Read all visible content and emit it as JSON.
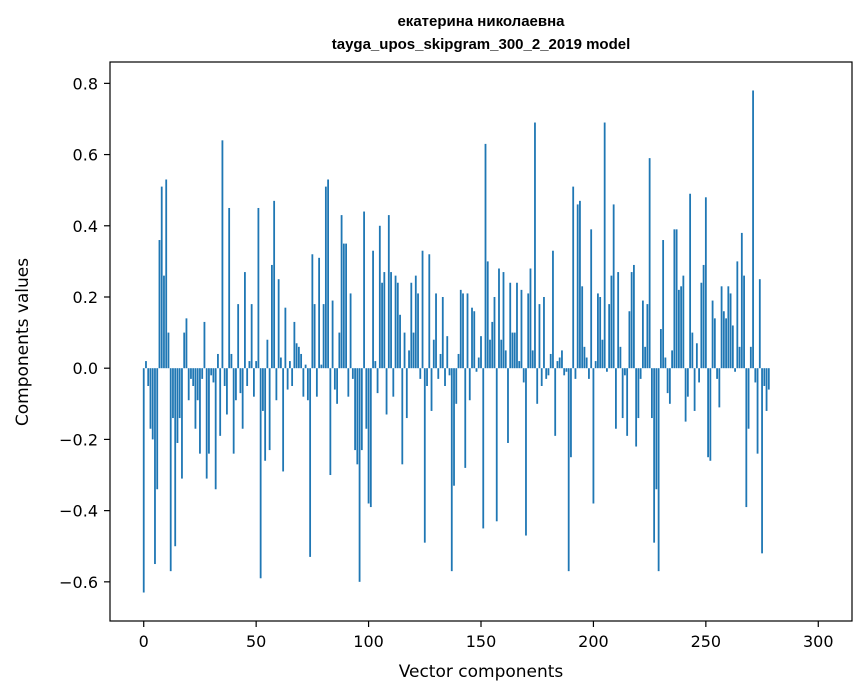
{
  "chart_data": {
    "type": "bar",
    "title_line1": "екатерина николаевна",
    "title_line2": "tayga_upos_skipgram_300_2_2019 model",
    "xlabel": "Vector components",
    "ylabel": "Components values",
    "xlim": [
      -15,
      315
    ],
    "ylim": [
      -0.71,
      0.86
    ],
    "xticks": [
      0,
      50,
      100,
      150,
      200,
      250,
      300
    ],
    "yticks": [
      -0.6,
      -0.4,
      -0.2,
      0.0,
      0.2,
      0.4,
      0.6,
      0.8
    ],
    "xtick_labels": [
      "0",
      "50",
      "100",
      "150",
      "200",
      "250",
      "300"
    ],
    "ytick_labels": [
      "−0.6",
      "−0.4",
      "−0.2",
      "0.0",
      "0.2",
      "0.4",
      "0.6",
      "0.8"
    ],
    "bar_color": "#1f77b4",
    "grid": false,
    "values": [
      -0.63,
      0.02,
      -0.05,
      -0.17,
      -0.2,
      -0.55,
      -0.34,
      0.36,
      0.51,
      0.26,
      0.53,
      0.1,
      -0.57,
      -0.14,
      -0.5,
      -0.21,
      -0.14,
      -0.31,
      0.1,
      0.14,
      -0.09,
      -0.03,
      -0.05,
      -0.17,
      -0.09,
      -0.24,
      -0.03,
      0.13,
      -0.31,
      -0.24,
      -0.02,
      -0.04,
      -0.34,
      0.04,
      -0.19,
      0.64,
      -0.05,
      -0.13,
      0.45,
      0.04,
      -0.24,
      -0.09,
      0.18,
      -0.07,
      -0.17,
      0.27,
      -0.05,
      0.02,
      0.18,
      -0.08,
      0.02,
      0.45,
      -0.59,
      -0.12,
      -0.26,
      0.08,
      -0.23,
      0.29,
      0.47,
      -0.09,
      0.25,
      0.03,
      -0.29,
      0.17,
      -0.06,
      0.02,
      -0.05,
      0.13,
      0.07,
      0.06,
      0.04,
      -0.08,
      0.01,
      -0.09,
      -0.53,
      0.32,
      0.18,
      -0.08,
      0.31,
      0.01,
      0.18,
      0.51,
      0.53,
      -0.3,
      0.19,
      -0.06,
      -0.1,
      0.1,
      0.43,
      0.35,
      0.35,
      -0.08,
      0.21,
      -0.03,
      -0.23,
      -0.27,
      -0.6,
      -0.23,
      0.44,
      -0.17,
      -0.38,
      -0.39,
      0.33,
      0.02,
      -0.07,
      0.4,
      0.24,
      0.27,
      -0.13,
      0.43,
      0.27,
      -0.08,
      0.26,
      0.24,
      0.15,
      -0.27,
      0.1,
      -0.14,
      0.05,
      0.24,
      0.1,
      0.26,
      0.21,
      -0.03,
      0.33,
      -0.49,
      -0.05,
      0.32,
      -0.12,
      0.08,
      0.21,
      -0.03,
      0.04,
      0.2,
      -0.05,
      0.09,
      -0.02,
      -0.57,
      -0.33,
      -0.1,
      0.04,
      0.22,
      0.21,
      -0.28,
      0.21,
      -0.09,
      0.17,
      0.16,
      -0.01,
      0.03,
      0.09,
      -0.45,
      0.63,
      0.3,
      0.08,
      0.13,
      0.2,
      -0.43,
      0.28,
      0.08,
      0.27,
      0.05,
      -0.21,
      0.24,
      0.1,
      0.1,
      0.24,
      0.02,
      0.22,
      -0.04,
      -0.47,
      0.21,
      0.28,
      0.05,
      0.69,
      -0.1,
      0.18,
      -0.05,
      0.2,
      -0.03,
      -0.02,
      0.04,
      0.33,
      -0.19,
      0.02,
      0.03,
      0.05,
      -0.02,
      -0.01,
      -0.57,
      -0.25,
      0.51,
      -0.03,
      0.46,
      0.47,
      0.23,
      0.06,
      0.03,
      -0.03,
      0.39,
      -0.38,
      0.02,
      0.21,
      0.2,
      0.08,
      0.69,
      -0.01,
      0.18,
      0.26,
      0.46,
      -0.17,
      0.27,
      0.06,
      -0.14,
      -0.02,
      -0.19,
      0.16,
      0.27,
      0.29,
      -0.22,
      -0.14,
      -0.03,
      0.19,
      0.06,
      0.18,
      0.59,
      -0.14,
      -0.49,
      -0.34,
      -0.57,
      0.11,
      0.36,
      0.03,
      -0.07,
      -0.1,
      0.05,
      0.39,
      0.39,
      0.22,
      0.23,
      0.26,
      -0.15,
      -0.08,
      0.49,
      0.1,
      -0.12,
      0.07,
      -0.04,
      0.24,
      0.29,
      0.48,
      -0.25,
      -0.26,
      0.19,
      0.14,
      -0.03,
      -0.11,
      0.23,
      0.16,
      0.14,
      0.23,
      0.21,
      0.12,
      -0.01,
      0.3,
      0.06,
      0.38,
      0.26,
      -0.39,
      -0.17,
      0.06,
      0.78,
      -0.04,
      -0.24,
      0.25,
      -0.52,
      -0.05,
      -0.12,
      -0.06
    ]
  }
}
